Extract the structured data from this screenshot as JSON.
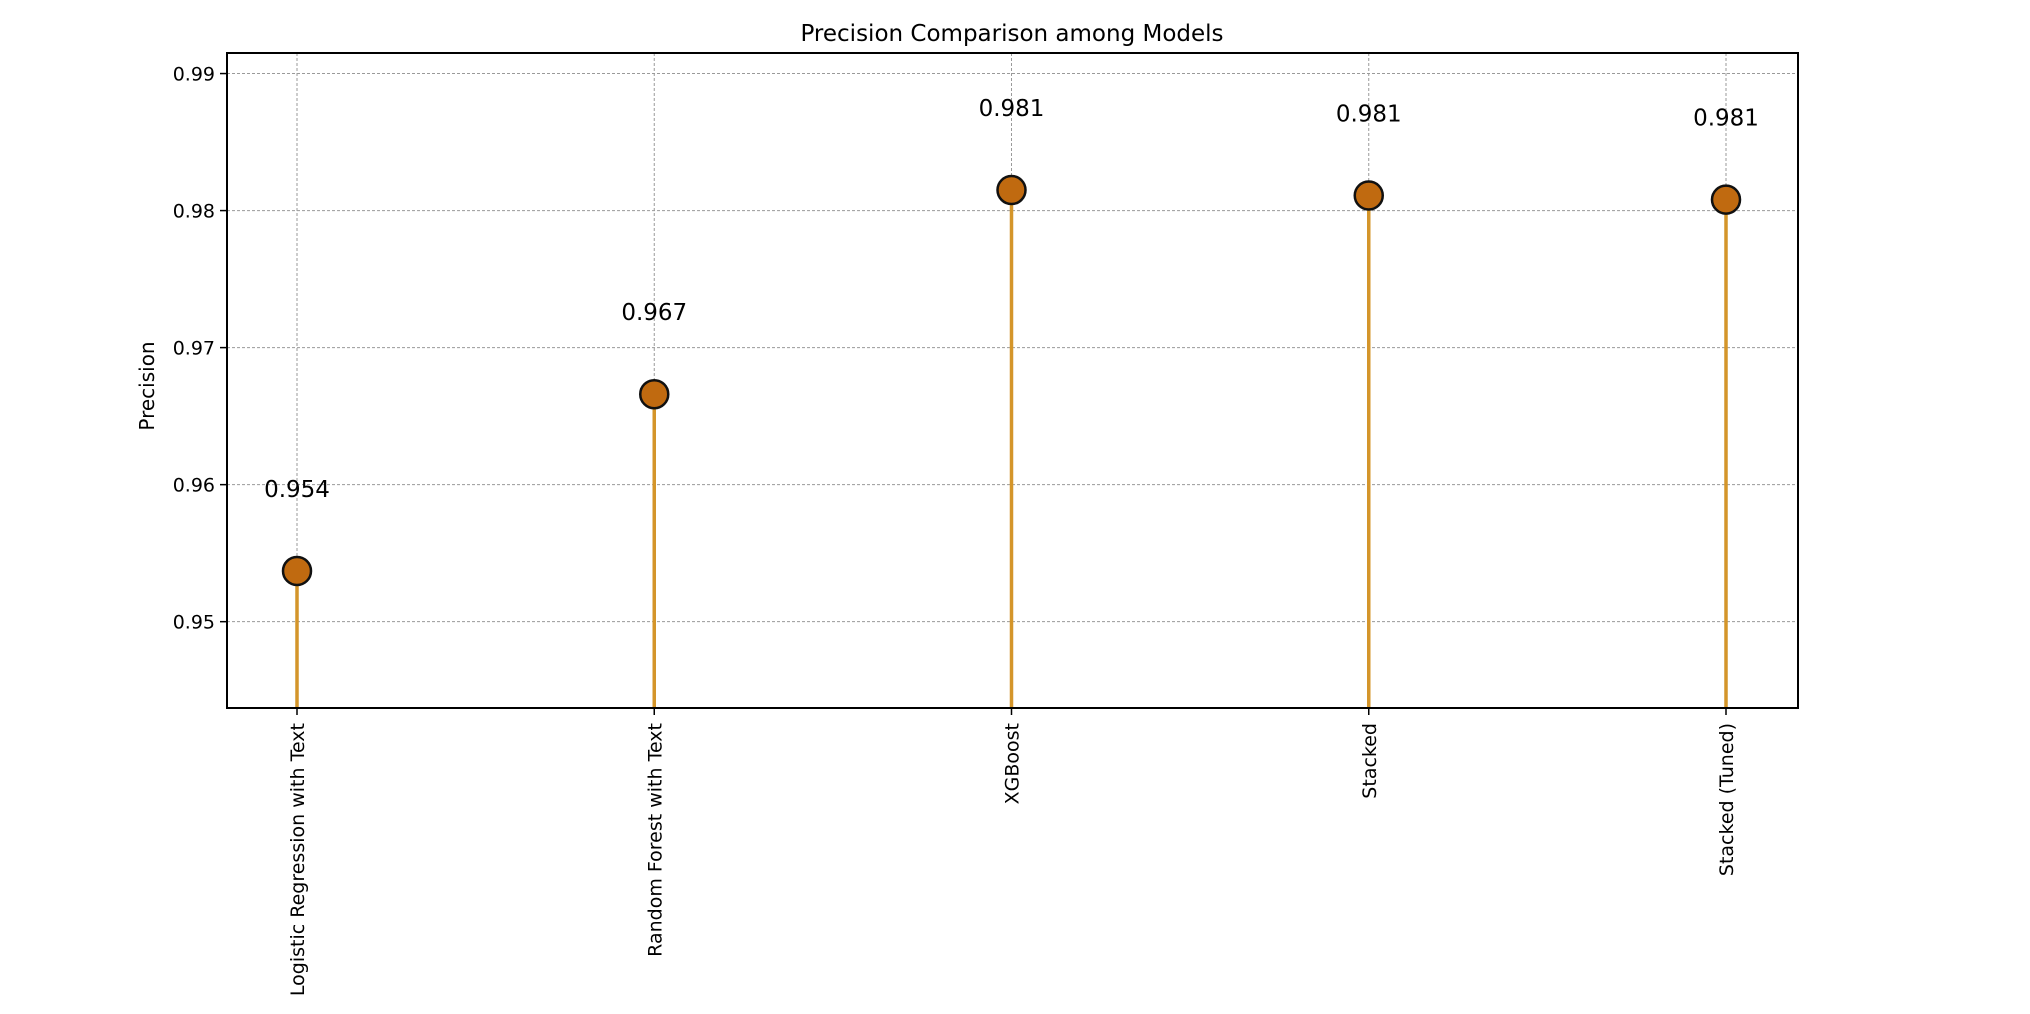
{
  "chart_data": {
    "type": "scatter",
    "subtype": "lollipop",
    "title": "Precision Comparison among Models",
    "xlabel": "",
    "ylabel": "Precision",
    "categories": [
      "Logistic Regression with Text",
      "Random Forest with Text",
      "XGBoost",
      "Stacked",
      "Stacked (Tuned)"
    ],
    "values": [
      0.9537,
      0.9666,
      0.9815,
      0.9811,
      0.9808
    ],
    "value_labels": [
      "0.954",
      "0.967",
      "0.981",
      "0.981",
      "0.981"
    ],
    "ylim": [
      0.9437,
      0.9915
    ],
    "yticks": [
      0.95,
      0.96,
      0.97,
      0.98,
      0.99
    ],
    "ytick_labels": [
      "0.95",
      "0.96",
      "0.97",
      "0.98",
      "0.99"
    ],
    "grid": true,
    "legend": "none",
    "colors": {
      "marker_fill": "#C06A10",
      "marker_edge": "#111111",
      "stem": "#D4952A",
      "grid": "#9A9A9A",
      "axes": "#000000"
    }
  }
}
